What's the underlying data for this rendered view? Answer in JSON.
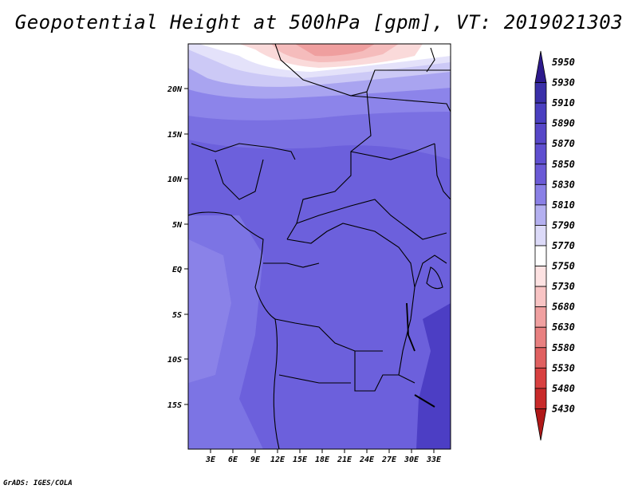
{
  "title": "Geopotential Height at 500hPa [gpm], VT: 2019021303",
  "credit": "GrADS: IGES/COLA",
  "lat_labels": [
    "20N",
    "15N",
    "10N",
    "5N",
    "EQ",
    "5S",
    "10S",
    "15S"
  ],
  "lon_labels": [
    "3E",
    "6E",
    "9E",
    "12E",
    "15E",
    "18E",
    "21E",
    "24E",
    "27E",
    "30E",
    "33E"
  ],
  "colorbar": {
    "levels": [
      "5950",
      "5930",
      "5910",
      "5890",
      "5870",
      "5850",
      "5830",
      "5810",
      "5790",
      "5770",
      "5750",
      "5730",
      "5680",
      "5630",
      "5580",
      "5530",
      "5480",
      "5430"
    ],
    "colors": [
      "#2d1a8c",
      "#3a2fa8",
      "#4a3fc0",
      "#5747c8",
      "#5f4fd0",
      "#6b5ad6",
      "#8a80e6",
      "#b4b0f0",
      "#dcdaf8",
      "#ffffff",
      "#fde2e2",
      "#f8c4c4",
      "#f0a0a0",
      "#e88080",
      "#e06060",
      "#d84040",
      "#c82a2a",
      "#b01818"
    ]
  },
  "map_colors": {
    "ocean_light": "#ffffff",
    "pink_light": "#f8d6d6",
    "pink_mid": "#f2b0b0",
    "pink_dark": "#ec9a9a",
    "lavender": "#c9c6f4",
    "purple_light": "#8c84ea",
    "purple": "#7268e0",
    "purple_deep": "#6457d8",
    "purple_dark": "#4b3cc4"
  }
}
